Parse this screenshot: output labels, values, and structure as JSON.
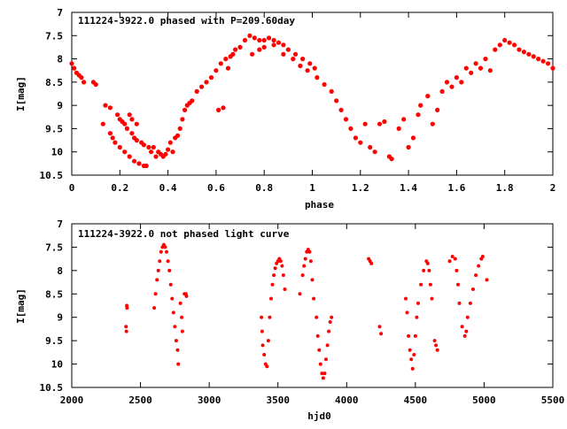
{
  "chart_data": [
    {
      "type": "scatter",
      "title": "111224-3922.0 phased with P=209.60day",
      "xlabel": "phase",
      "ylabel": "I[mag]",
      "xlim": [
        0,
        2
      ],
      "ylim": [
        7,
        10.5
      ],
      "y_inverted": true,
      "grid": false,
      "point_color": "#ff0000",
      "xticks": [
        0,
        0.2,
        0.4,
        0.6,
        0.8,
        1,
        1.2,
        1.4,
        1.6,
        1.8,
        2
      ],
      "xtick_labels": [
        "0",
        "0.2",
        "0.4",
        "0.6",
        "0.8",
        "1",
        "1.2",
        "1.4",
        "1.6",
        "1.8",
        "2"
      ],
      "yticks": [
        7,
        7.5,
        8,
        8.5,
        9,
        9.5,
        10,
        10.5
      ],
      "ytick_labels": [
        "7",
        "7.5",
        "8",
        "8.5",
        "9",
        "9.5",
        "10",
        "10.5"
      ],
      "series": [
        {
          "points": [
            [
              0.0,
              8.1
            ],
            [
              0.01,
              8.2
            ],
            [
              0.02,
              8.3
            ],
            [
              0.03,
              8.35
            ],
            [
              0.04,
              8.4
            ],
            [
              0.05,
              8.5
            ],
            [
              0.09,
              8.5
            ],
            [
              0.1,
              8.55
            ],
            [
              0.13,
              9.4
            ],
            [
              0.14,
              9.0
            ],
            [
              0.16,
              9.05
            ],
            [
              0.16,
              9.6
            ],
            [
              0.17,
              9.7
            ],
            [
              0.18,
              9.8
            ],
            [
              0.19,
              9.2
            ],
            [
              0.2,
              9.3
            ],
            [
              0.2,
              9.9
            ],
            [
              0.21,
              9.35
            ],
            [
              0.22,
              9.4
            ],
            [
              0.22,
              10.0
            ],
            [
              0.23,
              9.5
            ],
            [
              0.24,
              10.1
            ],
            [
              0.24,
              9.2
            ],
            [
              0.25,
              9.3
            ],
            [
              0.25,
              9.6
            ],
            [
              0.26,
              9.7
            ],
            [
              0.26,
              10.2
            ],
            [
              0.27,
              9.4
            ],
            [
              0.27,
              9.75
            ],
            [
              0.28,
              10.25
            ],
            [
              0.29,
              9.8
            ],
            [
              0.3,
              10.3
            ],
            [
              0.3,
              9.85
            ],
            [
              0.31,
              10.3
            ],
            [
              0.32,
              9.9
            ],
            [
              0.33,
              10.0
            ],
            [
              0.34,
              9.9
            ],
            [
              0.35,
              10.1
            ],
            [
              0.36,
              10.0
            ],
            [
              0.37,
              10.05
            ],
            [
              0.38,
              10.1
            ],
            [
              0.39,
              10.05
            ],
            [
              0.4,
              9.95
            ],
            [
              0.41,
              9.8
            ],
            [
              0.42,
              10.0
            ],
            [
              0.43,
              9.7
            ],
            [
              0.44,
              9.65
            ],
            [
              0.45,
              9.5
            ],
            [
              0.46,
              9.3
            ],
            [
              0.47,
              9.1
            ],
            [
              0.48,
              9.0
            ],
            [
              0.49,
              8.95
            ],
            [
              0.5,
              8.9
            ],
            [
              0.52,
              8.7
            ],
            [
              0.54,
              8.6
            ],
            [
              0.56,
              8.5
            ],
            [
              0.58,
              8.4
            ],
            [
              0.6,
              8.25
            ],
            [
              0.61,
              9.1
            ],
            [
              0.62,
              8.1
            ],
            [
              0.63,
              9.05
            ],
            [
              0.64,
              8.0
            ],
            [
              0.65,
              8.2
            ],
            [
              0.66,
              7.95
            ],
            [
              0.67,
              7.9
            ],
            [
              0.68,
              7.8
            ],
            [
              0.7,
              7.75
            ],
            [
              0.72,
              7.6
            ],
            [
              0.74,
              7.5
            ],
            [
              0.76,
              7.55
            ],
            [
              0.78,
              7.6
            ],
            [
              0.8,
              7.6
            ],
            [
              0.82,
              7.55
            ],
            [
              0.84,
              7.6
            ],
            [
              0.86,
              7.65
            ],
            [
              0.88,
              7.7
            ],
            [
              0.9,
              7.8
            ],
            [
              0.93,
              7.9
            ],
            [
              0.96,
              8.0
            ],
            [
              0.99,
              8.1
            ],
            [
              1.01,
              8.2
            ],
            [
              0.75,
              7.9
            ],
            [
              0.78,
              7.8
            ],
            [
              0.8,
              7.75
            ],
            [
              0.84,
              7.7
            ],
            [
              0.88,
              7.9
            ],
            [
              0.92,
              8.0
            ],
            [
              0.95,
              8.15
            ],
            [
              0.98,
              8.25
            ],
            [
              1.02,
              8.4
            ],
            [
              1.05,
              8.55
            ],
            [
              1.08,
              8.7
            ],
            [
              1.1,
              8.9
            ],
            [
              1.12,
              9.1
            ],
            [
              1.14,
              9.3
            ],
            [
              1.16,
              9.5
            ],
            [
              1.18,
              9.7
            ],
            [
              1.2,
              9.8
            ],
            [
              1.22,
              9.4
            ],
            [
              1.24,
              9.9
            ],
            [
              1.26,
              10.0
            ],
            [
              1.28,
              9.4
            ],
            [
              1.3,
              9.35
            ],
            [
              1.32,
              10.1
            ],
            [
              1.33,
              10.15
            ],
            [
              1.36,
              9.5
            ],
            [
              1.38,
              9.3
            ],
            [
              1.4,
              9.9
            ],
            [
              1.42,
              9.7
            ],
            [
              1.44,
              9.2
            ],
            [
              1.45,
              9.0
            ],
            [
              1.48,
              8.8
            ],
            [
              1.5,
              9.4
            ],
            [
              1.52,
              9.1
            ],
            [
              1.54,
              8.7
            ],
            [
              1.56,
              8.5
            ],
            [
              1.58,
              8.6
            ],
            [
              1.6,
              8.4
            ],
            [
              1.62,
              8.5
            ],
            [
              1.64,
              8.2
            ],
            [
              1.66,
              8.3
            ],
            [
              1.68,
              8.1
            ],
            [
              1.7,
              8.2
            ],
            [
              1.72,
              8.0
            ],
            [
              1.74,
              8.25
            ],
            [
              1.76,
              7.8
            ],
            [
              1.78,
              7.7
            ],
            [
              1.8,
              7.6
            ],
            [
              1.82,
              7.65
            ],
            [
              1.84,
              7.7
            ],
            [
              1.86,
              7.8
            ],
            [
              1.88,
              7.85
            ],
            [
              1.9,
              7.9
            ],
            [
              1.92,
              7.95
            ],
            [
              1.94,
              8.0
            ],
            [
              1.96,
              8.05
            ],
            [
              1.98,
              8.1
            ],
            [
              2.0,
              8.2
            ]
          ]
        }
      ]
    },
    {
      "type": "scatter",
      "title": "111224-3922.0 not phased light curve",
      "xlabel": "hjd0",
      "ylabel": "I[mag]",
      "xlim": [
        2000,
        5500
      ],
      "ylim": [
        7,
        10.5
      ],
      "y_inverted": true,
      "grid": false,
      "point_color": "#ff0000",
      "xticks": [
        2000,
        2500,
        3000,
        3500,
        4000,
        4500,
        5000,
        5500
      ],
      "xtick_labels": [
        "2000",
        "2500",
        "3000",
        "3500",
        "4000",
        "4500",
        "5000",
        "5500"
      ],
      "yticks": [
        7,
        7.5,
        8,
        8.5,
        9,
        9.5,
        10,
        10.5
      ],
      "ytick_labels": [
        "7",
        "7.5",
        "8",
        "8.5",
        "9",
        "9.5",
        "10",
        "10.5"
      ],
      "series": [
        {
          "points": [
            [
              2400,
              8.75
            ],
            [
              2402,
              8.8
            ],
            [
              2395,
              9.2
            ],
            [
              2398,
              9.3
            ],
            [
              2600,
              8.8
            ],
            [
              2610,
              8.5
            ],
            [
              2620,
              8.2
            ],
            [
              2630,
              8.0
            ],
            [
              2640,
              7.8
            ],
            [
              2650,
              7.6
            ],
            [
              2660,
              7.5
            ],
            [
              2670,
              7.45
            ],
            [
              2680,
              7.5
            ],
            [
              2690,
              7.6
            ],
            [
              2700,
              7.8
            ],
            [
              2710,
              8.0
            ],
            [
              2720,
              8.3
            ],
            [
              2730,
              8.6
            ],
            [
              2740,
              8.9
            ],
            [
              2750,
              9.2
            ],
            [
              2760,
              9.5
            ],
            [
              2770,
              9.7
            ],
            [
              2775,
              10.0
            ],
            [
              2790,
              8.7
            ],
            [
              2800,
              9.0
            ],
            [
              2805,
              9.3
            ],
            [
              2820,
              8.5
            ],
            [
              2830,
              8.5
            ],
            [
              2835,
              8.55
            ],
            [
              3380,
              9.0
            ],
            [
              3385,
              9.3
            ],
            [
              3390,
              9.6
            ],
            [
              3400,
              9.8
            ],
            [
              3410,
              10.0
            ],
            [
              3420,
              10.05
            ],
            [
              3430,
              9.5
            ],
            [
              3440,
              9.0
            ],
            [
              3450,
              8.6
            ],
            [
              3460,
              8.3
            ],
            [
              3470,
              8.1
            ],
            [
              3480,
              7.95
            ],
            [
              3490,
              7.85
            ],
            [
              3500,
              7.8
            ],
            [
              3510,
              7.75
            ],
            [
              3520,
              7.8
            ],
            [
              3530,
              7.9
            ],
            [
              3540,
              8.1
            ],
            [
              3550,
              8.4
            ],
            [
              3660,
              8.5
            ],
            [
              3680,
              8.1
            ],
            [
              3690,
              7.9
            ],
            [
              3700,
              7.75
            ],
            [
              3710,
              7.6
            ],
            [
              3720,
              7.55
            ],
            [
              3730,
              7.6
            ],
            [
              3740,
              7.8
            ],
            [
              3750,
              8.2
            ],
            [
              3760,
              8.6
            ],
            [
              3780,
              9.0
            ],
            [
              3790,
              9.4
            ],
            [
              3800,
              9.7
            ],
            [
              3810,
              10.0
            ],
            [
              3820,
              10.2
            ],
            [
              3830,
              10.3
            ],
            [
              3840,
              10.2
            ],
            [
              3850,
              9.9
            ],
            [
              3860,
              9.6
            ],
            [
              3870,
              9.3
            ],
            [
              3880,
              9.1
            ],
            [
              3890,
              9.0
            ],
            [
              4160,
              7.75
            ],
            [
              4170,
              7.8
            ],
            [
              4180,
              7.85
            ],
            [
              4240,
              9.2
            ],
            [
              4250,
              9.35
            ],
            [
              4430,
              8.6
            ],
            [
              4440,
              8.9
            ],
            [
              4450,
              9.4
            ],
            [
              4460,
              9.7
            ],
            [
              4470,
              9.9
            ],
            [
              4480,
              10.1
            ],
            [
              4490,
              9.8
            ],
            [
              4500,
              9.4
            ],
            [
              4510,
              9.0
            ],
            [
              4520,
              8.7
            ],
            [
              4540,
              8.3
            ],
            [
              4560,
              8.0
            ],
            [
              4580,
              7.8
            ],
            [
              4590,
              7.85
            ],
            [
              4600,
              8.0
            ],
            [
              4610,
              8.3
            ],
            [
              4620,
              8.6
            ],
            [
              4640,
              9.5
            ],
            [
              4650,
              9.6
            ],
            [
              4660,
              9.7
            ],
            [
              4750,
              7.8
            ],
            [
              4770,
              7.7
            ],
            [
              4790,
              7.75
            ],
            [
              4800,
              8.0
            ],
            [
              4810,
              8.3
            ],
            [
              4820,
              8.7
            ],
            [
              4840,
              9.2
            ],
            [
              4860,
              9.4
            ],
            [
              4870,
              9.3
            ],
            [
              4880,
              9.0
            ],
            [
              4900,
              8.7
            ],
            [
              4920,
              8.4
            ],
            [
              4940,
              8.1
            ],
            [
              4960,
              7.9
            ],
            [
              4980,
              7.75
            ],
            [
              4990,
              7.7
            ],
            [
              5020,
              8.2
            ]
          ]
        }
      ]
    }
  ]
}
